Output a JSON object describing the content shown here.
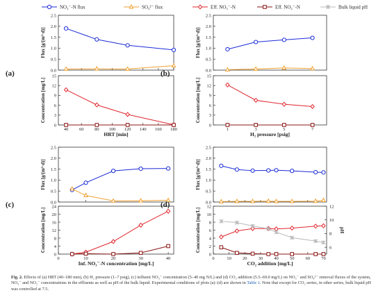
{
  "legend": [
    {
      "label": "NO₃⁻-N flux",
      "color": "#1a2bd6",
      "marker": "circle"
    },
    {
      "label": "SO₄²⁻ flux",
      "color": "#f0a030",
      "marker": "triangle"
    },
    {
      "label": "Eff. NO₃⁻-N",
      "color": "#e0262d",
      "marker": "diamond"
    },
    {
      "label": "Eff. NO₂⁻-N",
      "color": "#8b1414",
      "marker": "square"
    },
    {
      "label": "Bulk liquid pH",
      "color": "#b8b8b8",
      "marker": "x"
    }
  ],
  "colors": {
    "no3_flux": "#1a2bd6",
    "so4_flux": "#f0a030",
    "eff_no3": "#e0262d",
    "eff_no2": "#8b1414",
    "ph": "#b8b8b8"
  },
  "chart_data": [
    {
      "panel": "(a)",
      "type": "line",
      "x": [
        40,
        80,
        120,
        180
      ],
      "xlim": [
        30,
        180
      ],
      "xticks": [
        40,
        60,
        80,
        100,
        120,
        140,
        160,
        180
      ],
      "xlabel": "HRT [min]",
      "flux": {
        "ylabel": "Flux [g/(m²·d)]",
        "ylim": [
          0,
          2.5
        ],
        "yticks": [
          0.0,
          0.5,
          1.0,
          1.5,
          2.0,
          2.5
        ],
        "series": [
          {
            "key": "no3_flux",
            "values": [
              1.9,
              1.4,
              1.13,
              0.92
            ]
          },
          {
            "key": "so4_flux",
            "values": [
              0.05,
              0.06,
              0.05,
              0.2
            ]
          }
        ]
      },
      "conc": {
        "ylabel": "Concentration [mg/L]",
        "ylim": [
          0,
          15
        ],
        "yticks": [
          0,
          3,
          6,
          9,
          12,
          15
        ],
        "series": [
          {
            "key": "eff_no3",
            "values": [
              10.7,
              6.1,
              3.2,
              0.05
            ]
          },
          {
            "key": "eff_no2",
            "values": [
              0,
              0,
              0,
              0
            ]
          }
        ]
      }
    },
    {
      "panel": "(b)",
      "type": "line",
      "x": [
        1,
        3,
        5,
        7
      ],
      "xlim": [
        0,
        8
      ],
      "xticks": [
        1,
        3,
        5,
        7
      ],
      "xlabel": "H₂ pressure [psig]",
      "flux": {
        "ylabel": "Flux [g/(m²·d)]",
        "ylim": [
          0,
          2.5
        ],
        "yticks": [
          0.0,
          0.5,
          1.0,
          1.5,
          2.0,
          2.5
        ],
        "series": [
          {
            "key": "no3_flux",
            "values": [
              0.95,
              1.28,
              1.38,
              1.47
            ]
          },
          {
            "key": "so4_flux",
            "values": [
              0.02,
              0.05,
              0.1,
              0.07
            ]
          }
        ]
      },
      "conc": {
        "ylabel": "Concentration [mg/L]",
        "ylim": [
          0,
          15
        ],
        "yticks": [
          0,
          3,
          6,
          9,
          12,
          15
        ],
        "series": [
          {
            "key": "eff_no3",
            "values": [
              12.2,
              7.5,
              6.3,
              5.6
            ]
          },
          {
            "key": "eff_no2",
            "values": [
              0,
              0,
              0,
              0
            ]
          }
        ]
      }
    },
    {
      "panel": "(c)",
      "type": "line",
      "x": [
        5,
        10,
        20,
        30,
        40
      ],
      "xlim": [
        0,
        42
      ],
      "xticks": [
        0,
        10,
        20,
        30,
        40
      ],
      "xlabel": "Inf. NO₃⁻-N concentration [mg/L]",
      "flux": {
        "ylabel": "Flux [g/(m²·d)]",
        "ylim": [
          0,
          2.5
        ],
        "yticks": [
          0.0,
          0.5,
          1.0,
          1.5,
          2.0,
          2.5
        ],
        "series": [
          {
            "key": "no3_flux",
            "values": [
              0.55,
              0.88,
              1.42,
              1.52,
              1.53
            ]
          },
          {
            "key": "so4_flux",
            "values": [
              0.6,
              0.3,
              0.05,
              0.06,
              0.08
            ]
          }
        ]
      },
      "conc": {
        "ylabel": "Concentration [mg/L]",
        "ylim": [
          0,
          24
        ],
        "yticks": [
          0,
          4,
          8,
          12,
          16,
          20,
          24
        ],
        "series": [
          {
            "key": "eff_no3",
            "values": [
              0,
              1.0,
              6.3,
              14.5,
              21.5
            ]
          },
          {
            "key": "eff_no2",
            "values": [
              0,
              0.2,
              0,
              0.6,
              4.0
            ]
          }
        ]
      }
    },
    {
      "panel": "(d)",
      "type": "line",
      "x": [
        5,
        15,
        25,
        35,
        40,
        50,
        65,
        70
      ],
      "xlim": [
        0,
        72
      ],
      "xticks": [
        0,
        10,
        20,
        30,
        40,
        50,
        60,
        70
      ],
      "xlabel": "CO₂ addition [mg/L]",
      "flux": {
        "ylabel": "Flux [g/(m²·d)]",
        "ylim": [
          0,
          2.5
        ],
        "yticks": [
          0.0,
          0.5,
          1.0,
          1.5,
          2.0,
          2.5
        ],
        "series": [
          {
            "key": "no3_flux",
            "values": [
              1.65,
              1.48,
              1.43,
              1.44,
              1.45,
              1.42,
              1.36,
              1.35
            ]
          },
          {
            "key": "so4_flux",
            "values": [
              0.02,
              0.03,
              0.03,
              0.04,
              0.03,
              0.03,
              0.04,
              0.08
            ]
          }
        ]
      },
      "conc": {
        "ylabel": "Concentration [mg/L]",
        "ylim": [
          0,
          12
        ],
        "yticks": [
          0,
          2,
          4,
          6,
          8,
          10,
          12
        ],
        "y2label": "pH",
        "y2lim": [
          5,
          12
        ],
        "y2ticks": [
          6,
          8,
          10,
          12
        ],
        "series": [
          {
            "key": "eff_no3",
            "values": [
              4.3,
              5.8,
              6.4,
              6.4,
              6.3,
              6.5,
              7.0,
              7.1
            ]
          },
          {
            "key": "eff_no2",
            "values": [
              1.7,
              0.3,
              0.1,
              0,
              0,
              0,
              0,
              0
            ]
          },
          {
            "key": "ph",
            "axis": "y2",
            "values": [
              9.8,
              9.6,
              9.1,
              8.7,
              8.2,
              7.4,
              6.9,
              6.7
            ]
          }
        ]
      }
    }
  ],
  "caption": {
    "lead": "Fig. 2.",
    "text": "Effects of (a) HRT (40–180 min), (b) H₂ pressure (1–7 psig), (c) influent NO₃⁻ concentration (5–40 mg N/L) and (d) CO₂ addition (5.5–69.0 mg/L) on NO₃⁻ and SO₄²⁻ removal fluxes of the system, NO₃⁻ and NO₂⁻ concentrations in the effluents as well as pH of the bulk liquid. Experimental conditions of plots (a)–(d) are shown in",
    "link": "Table 1",
    "tail": ". Note that except for CO₂ series, in other series, bulk liquid pH was controlled at 7.5."
  }
}
